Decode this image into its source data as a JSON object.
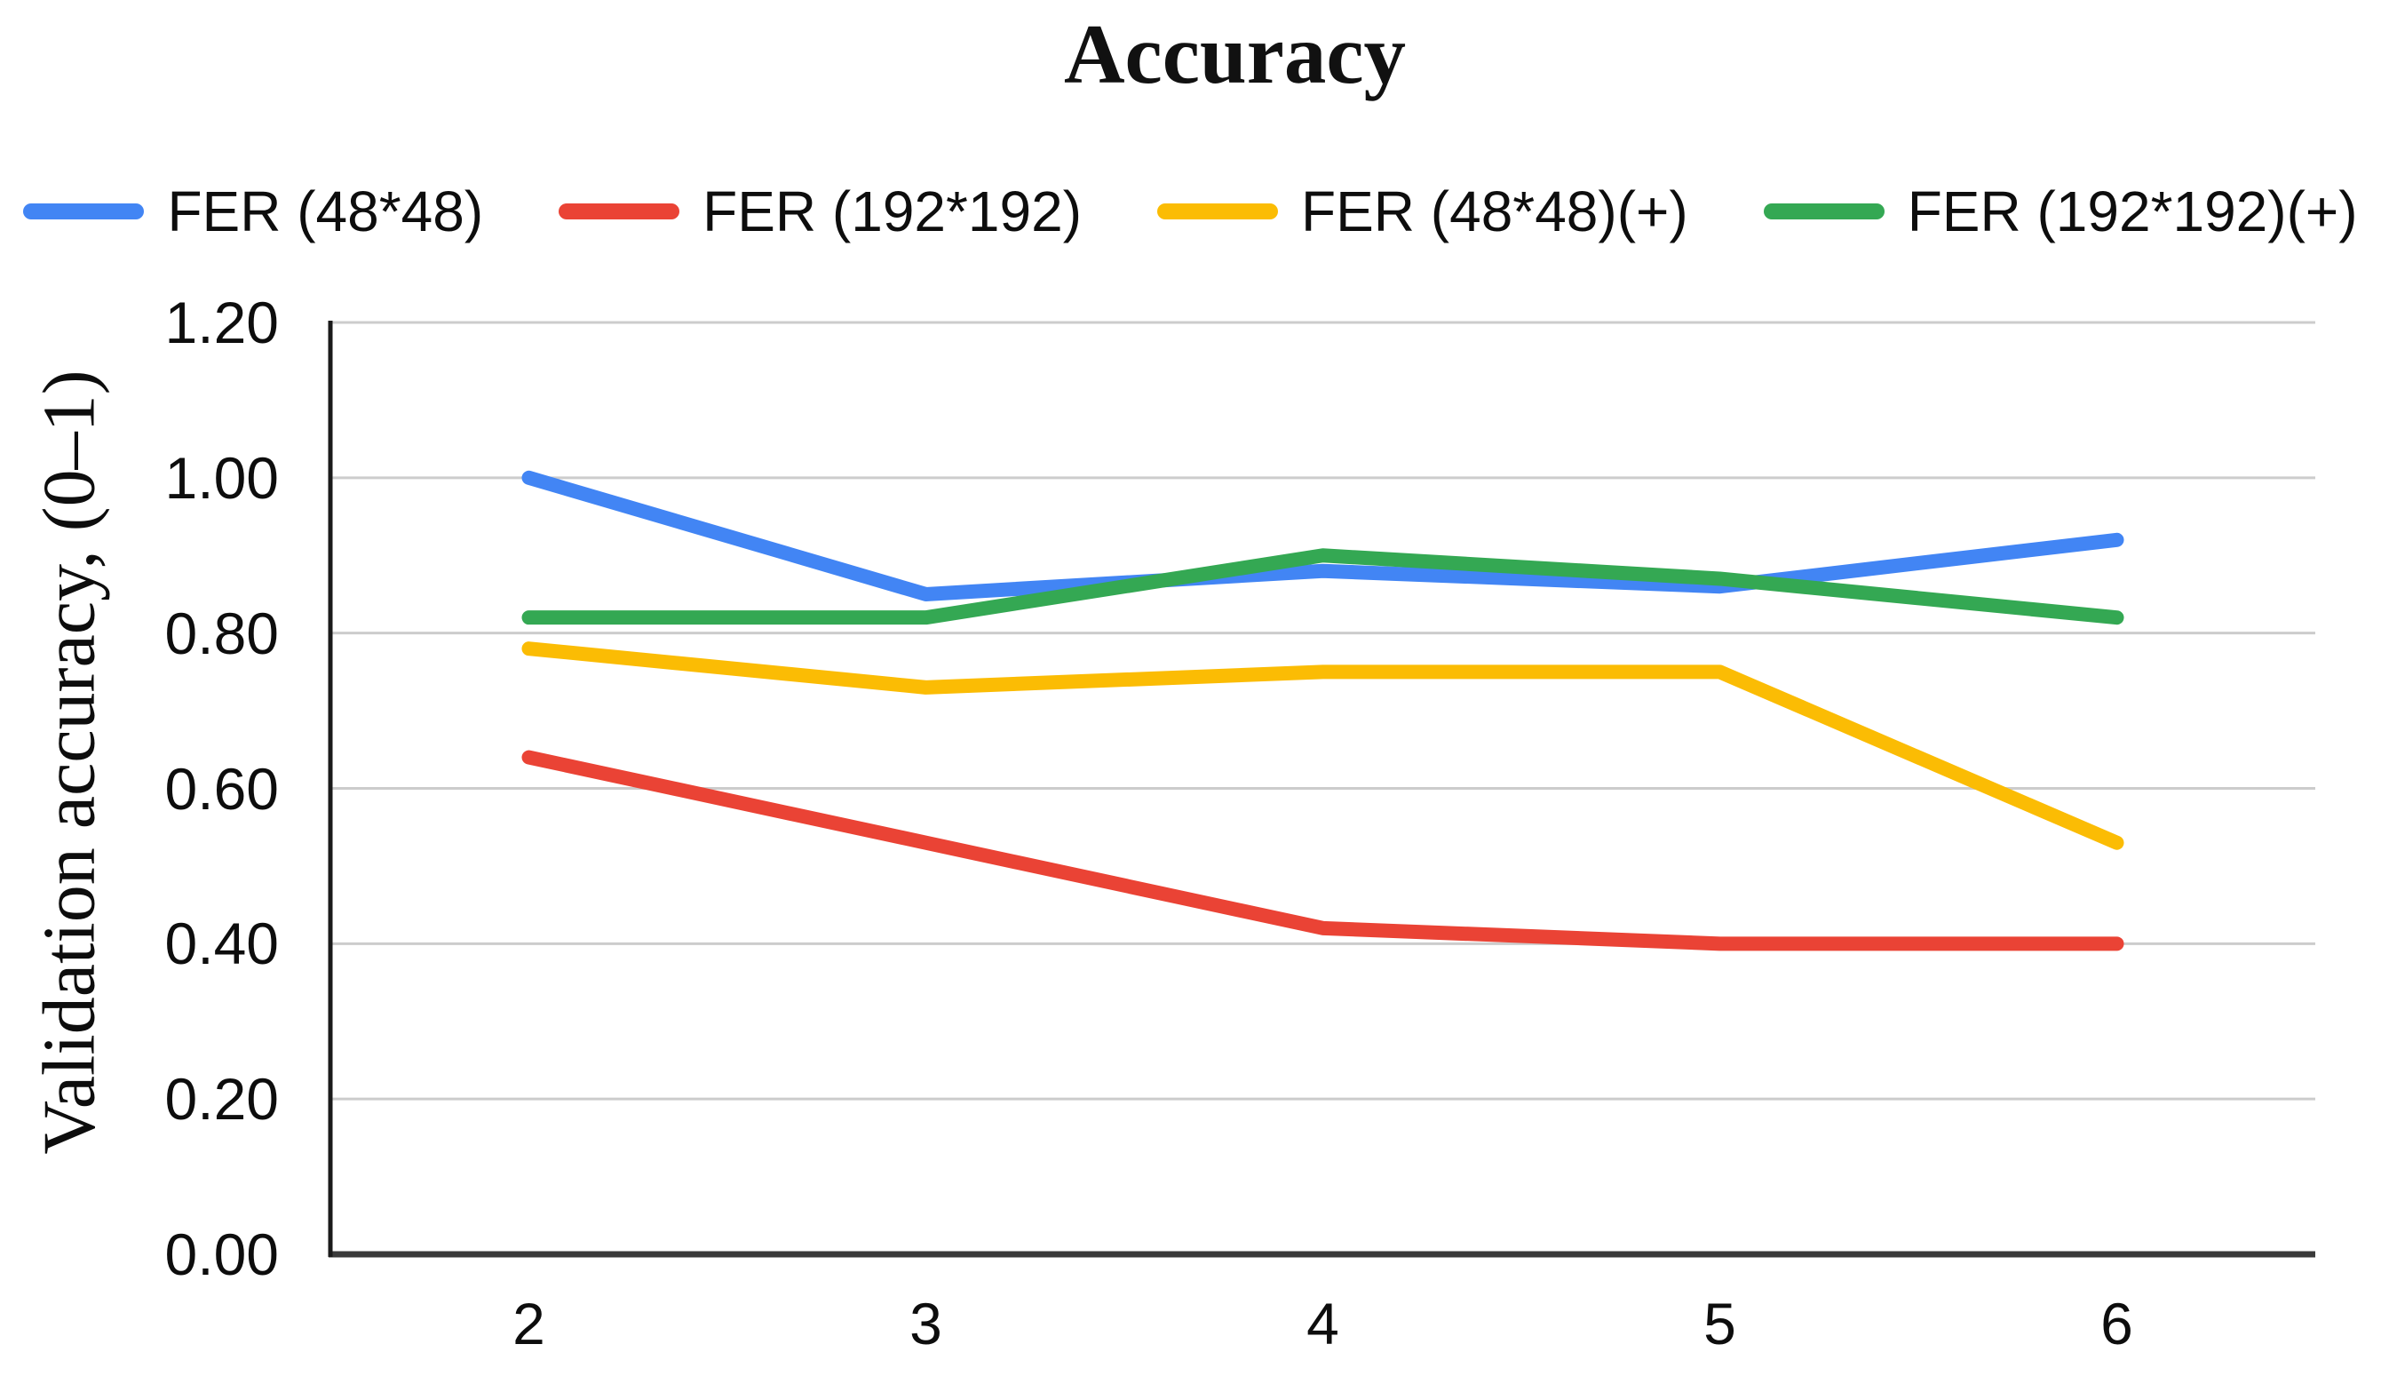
{
  "figure": {
    "background": "#ffffff"
  },
  "chart_data": {
    "type": "line",
    "title": "Accuracy",
    "ylabel": "Validation accuracy, (0–1)",
    "xlabel": "",
    "x": [
      2,
      3,
      4,
      5,
      6
    ],
    "x_tick_labels": [
      "2",
      "3",
      "4",
      "5",
      "6"
    ],
    "y_ticks": [
      1.2,
      1.0,
      0.8,
      0.6,
      0.4,
      0.2,
      0.0
    ],
    "y_tick_labels": [
      "1.20",
      "1.00",
      "0.80",
      "0.60",
      "0.40",
      "0.20",
      "0.00"
    ],
    "ylim": [
      0,
      1.2
    ],
    "x_axis_range": [
      1.5,
      6.5
    ],
    "grid": true,
    "legend_position": "top",
    "series": [
      {
        "name": "FER (48*48)",
        "color": "#4285F4",
        "values": [
          1.0,
          0.85,
          0.88,
          0.86,
          0.92
        ]
      },
      {
        "name": "FER (192*192)",
        "color": "#EA4335",
        "values": [
          0.64,
          0.53,
          0.42,
          0.4,
          0.4
        ]
      },
      {
        "name": "FER (48*48)(+)",
        "color": "#FBBC04",
        "values": [
          0.78,
          0.73,
          0.75,
          0.75,
          0.53
        ]
      },
      {
        "name": "FER (192*192)(+)",
        "color": "#34A853",
        "values": [
          0.82,
          0.82,
          0.9,
          0.87,
          0.82
        ]
      }
    ],
    "colors": {
      "gridline": "#cccccc",
      "x_axis": "#3a3a3a",
      "y_axis": "#1a1a1a",
      "text": "#000000"
    }
  }
}
